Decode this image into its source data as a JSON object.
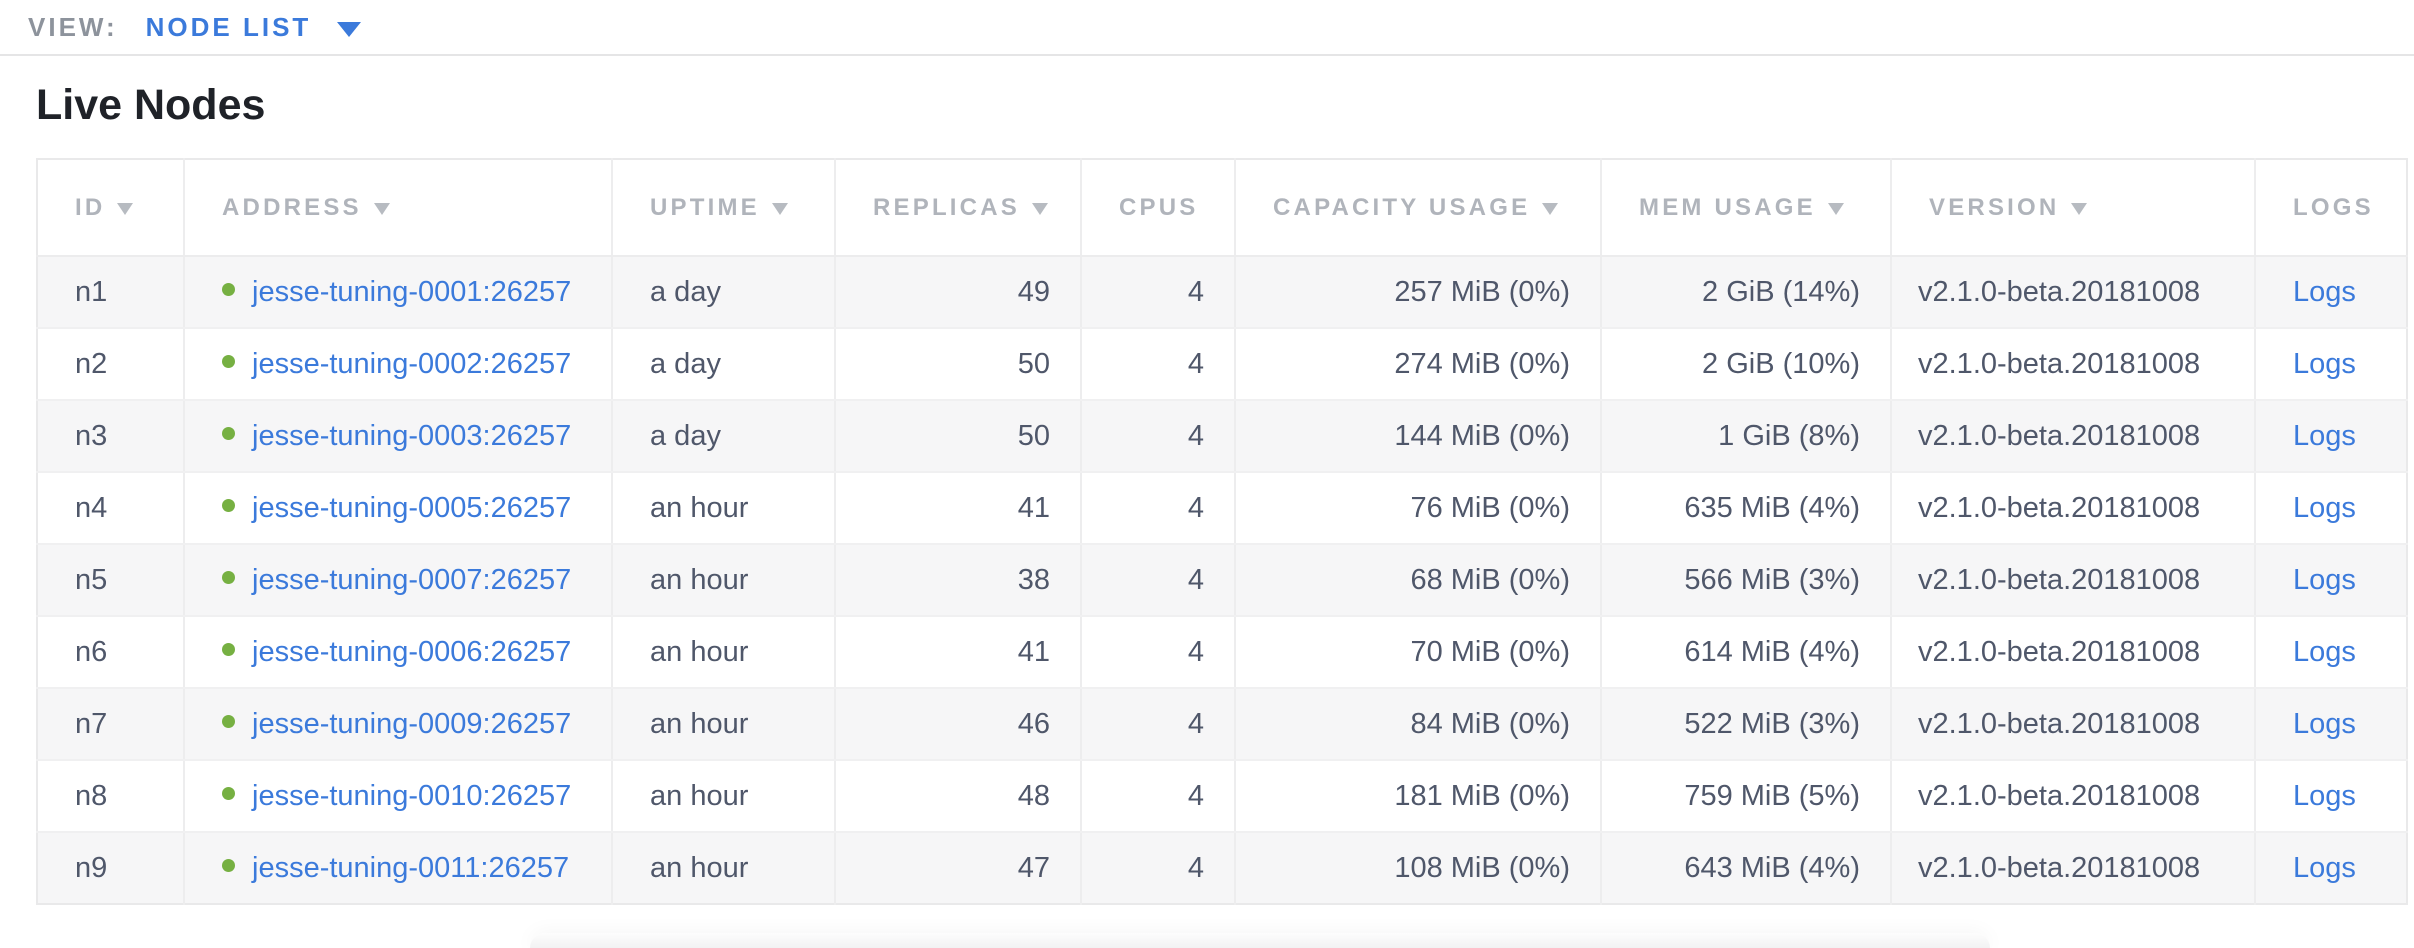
{
  "view_bar": {
    "label": "VIEW:",
    "selected": "NODE LIST"
  },
  "page": {
    "title": "Live Nodes"
  },
  "colors": {
    "accent_blue": "#3b7adb",
    "live_green": "#76b042",
    "header_gray": "#b0b4bb",
    "cell_text": "#4f576a",
    "alt_row_bg": "#f6f6f7"
  },
  "table": {
    "columns": [
      {
        "label": "ID",
        "sortable": true
      },
      {
        "label": "ADDRESS",
        "sortable": true
      },
      {
        "label": "UPTIME",
        "sortable": true
      },
      {
        "label": "REPLICAS",
        "sortable": true
      },
      {
        "label": "CPUS",
        "sortable": false
      },
      {
        "label": "CAPACITY USAGE",
        "sortable": true
      },
      {
        "label": "MEM USAGE",
        "sortable": true
      },
      {
        "label": "VERSION",
        "sortable": true
      },
      {
        "label": "LOGS",
        "sortable": false
      }
    ],
    "rows": [
      {
        "id": "n1",
        "status": "live",
        "address": "jesse-tuning-0001:26257",
        "uptime": "a day",
        "replicas": "49",
        "cpus": "4",
        "capacity_usage": "257 MiB (0%)",
        "mem_usage": "2 GiB (14%)",
        "version": "v2.1.0-beta.20181008",
        "logs_label": "Logs"
      },
      {
        "id": "n2",
        "status": "live",
        "address": "jesse-tuning-0002:26257",
        "uptime": "a day",
        "replicas": "50",
        "cpus": "4",
        "capacity_usage": "274 MiB (0%)",
        "mem_usage": "2 GiB (10%)",
        "version": "v2.1.0-beta.20181008",
        "logs_label": "Logs"
      },
      {
        "id": "n3",
        "status": "live",
        "address": "jesse-tuning-0003:26257",
        "uptime": "a day",
        "replicas": "50",
        "cpus": "4",
        "capacity_usage": "144 MiB (0%)",
        "mem_usage": "1 GiB (8%)",
        "version": "v2.1.0-beta.20181008",
        "logs_label": "Logs"
      },
      {
        "id": "n4",
        "status": "live",
        "address": "jesse-tuning-0005:26257",
        "uptime": "an hour",
        "replicas": "41",
        "cpus": "4",
        "capacity_usage": "76 MiB (0%)",
        "mem_usage": "635 MiB (4%)",
        "version": "v2.1.0-beta.20181008",
        "logs_label": "Logs"
      },
      {
        "id": "n5",
        "status": "live",
        "address": "jesse-tuning-0007:26257",
        "uptime": "an hour",
        "replicas": "38",
        "cpus": "4",
        "capacity_usage": "68 MiB (0%)",
        "mem_usage": "566 MiB (3%)",
        "version": "v2.1.0-beta.20181008",
        "logs_label": "Logs"
      },
      {
        "id": "n6",
        "status": "live",
        "address": "jesse-tuning-0006:26257",
        "uptime": "an hour",
        "replicas": "41",
        "cpus": "4",
        "capacity_usage": "70 MiB (0%)",
        "mem_usage": "614 MiB (4%)",
        "version": "v2.1.0-beta.20181008",
        "logs_label": "Logs"
      },
      {
        "id": "n7",
        "status": "live",
        "address": "jesse-tuning-0009:26257",
        "uptime": "an hour",
        "replicas": "46",
        "cpus": "4",
        "capacity_usage": "84 MiB (0%)",
        "mem_usage": "522 MiB (3%)",
        "version": "v2.1.0-beta.20181008",
        "logs_label": "Logs"
      },
      {
        "id": "n8",
        "status": "live",
        "address": "jesse-tuning-0010:26257",
        "uptime": "an hour",
        "replicas": "48",
        "cpus": "4",
        "capacity_usage": "181 MiB (0%)",
        "mem_usage": "759 MiB (5%)",
        "version": "v2.1.0-beta.20181008",
        "logs_label": "Logs"
      },
      {
        "id": "n9",
        "status": "live",
        "address": "jesse-tuning-0011:26257",
        "uptime": "an hour",
        "replicas": "47",
        "cpus": "4",
        "capacity_usage": "108 MiB (0%)",
        "mem_usage": "643 MiB (4%)",
        "version": "v2.1.0-beta.20181008",
        "logs_label": "Logs"
      }
    ]
  }
}
